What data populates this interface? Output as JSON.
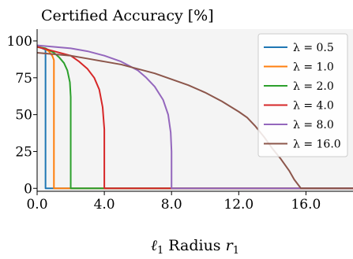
{
  "chart_data": {
    "type": "line",
    "title": "Certified Accuracy [%]",
    "xlabel": "ℓ1 Radius r1",
    "ylabel": "",
    "xlim": [
      0,
      18.8
    ],
    "ylim": [
      -2,
      108
    ],
    "xticks": [
      0.0,
      4.0,
      8.0,
      12.0,
      16.0
    ],
    "xtick_labels": [
      "0.0",
      "4.0",
      "8.0",
      "12.0",
      "16.0"
    ],
    "yticks": [
      0,
      25,
      50,
      75,
      100
    ],
    "ytick_labels": [
      "0",
      "25",
      "50",
      "75",
      "100"
    ],
    "grid": false,
    "background": "#f4f4f4",
    "legend_position": "top-right",
    "series": [
      {
        "name": "λ = 0.5",
        "color": "#1f77b4",
        "x": [
          0,
          0.3,
          0.5,
          0.5,
          18.8
        ],
        "y": [
          96,
          95,
          94,
          0,
          0
        ]
      },
      {
        "name": "λ = 1.0",
        "color": "#ff7f0e",
        "x": [
          0,
          0.4,
          0.7,
          0.9,
          1.0,
          1.0,
          18.8
        ],
        "y": [
          96,
          95,
          93,
          90,
          87,
          0,
          0
        ]
      },
      {
        "name": "λ = 2.0",
        "color": "#2ca02c",
        "x": [
          0,
          0.5,
          1.0,
          1.3,
          1.6,
          1.8,
          1.95,
          2.0,
          2.0,
          18.8
        ],
        "y": [
          96,
          95,
          92,
          89,
          85,
          80,
          72,
          62,
          0,
          0
        ]
      },
      {
        "name": "λ = 4.0",
        "color": "#d62728",
        "x": [
          0,
          1.0,
          2.0,
          2.5,
          3.0,
          3.4,
          3.7,
          3.9,
          4.0,
          4.0,
          18.8
        ],
        "y": [
          96,
          93,
          90,
          86,
          81,
          75,
          67,
          55,
          40,
          0,
          0
        ]
      },
      {
        "name": "λ = 8.0",
        "color": "#9467bd",
        "x": [
          0,
          1.0,
          2.0,
          3.0,
          4.0,
          5.0,
          6.0,
          6.5,
          7.0,
          7.5,
          7.8,
          7.95,
          8.0,
          8.0,
          18.8
        ],
        "y": [
          97,
          96,
          95,
          93,
          90,
          86,
          80,
          75,
          69,
          60,
          50,
          38,
          25,
          0,
          0
        ]
      },
      {
        "name": "λ = 16.0",
        "color": "#8c564b",
        "x": [
          0,
          1.0,
          2.0,
          3.0,
          4.0,
          5.0,
          6.0,
          7.0,
          8.0,
          9.0,
          10.0,
          11.0,
          12.0,
          12.5,
          13.0,
          13.5,
          14.0,
          14.5,
          15.0,
          15.3,
          15.5,
          15.7,
          18.8
        ],
        "y": [
          92,
          91,
          90,
          88,
          86,
          84,
          81,
          78,
          74,
          70,
          65,
          59,
          52,
          48,
          42,
          35,
          27,
          20,
          12,
          6,
          3,
          0,
          0
        ]
      }
    ]
  }
}
